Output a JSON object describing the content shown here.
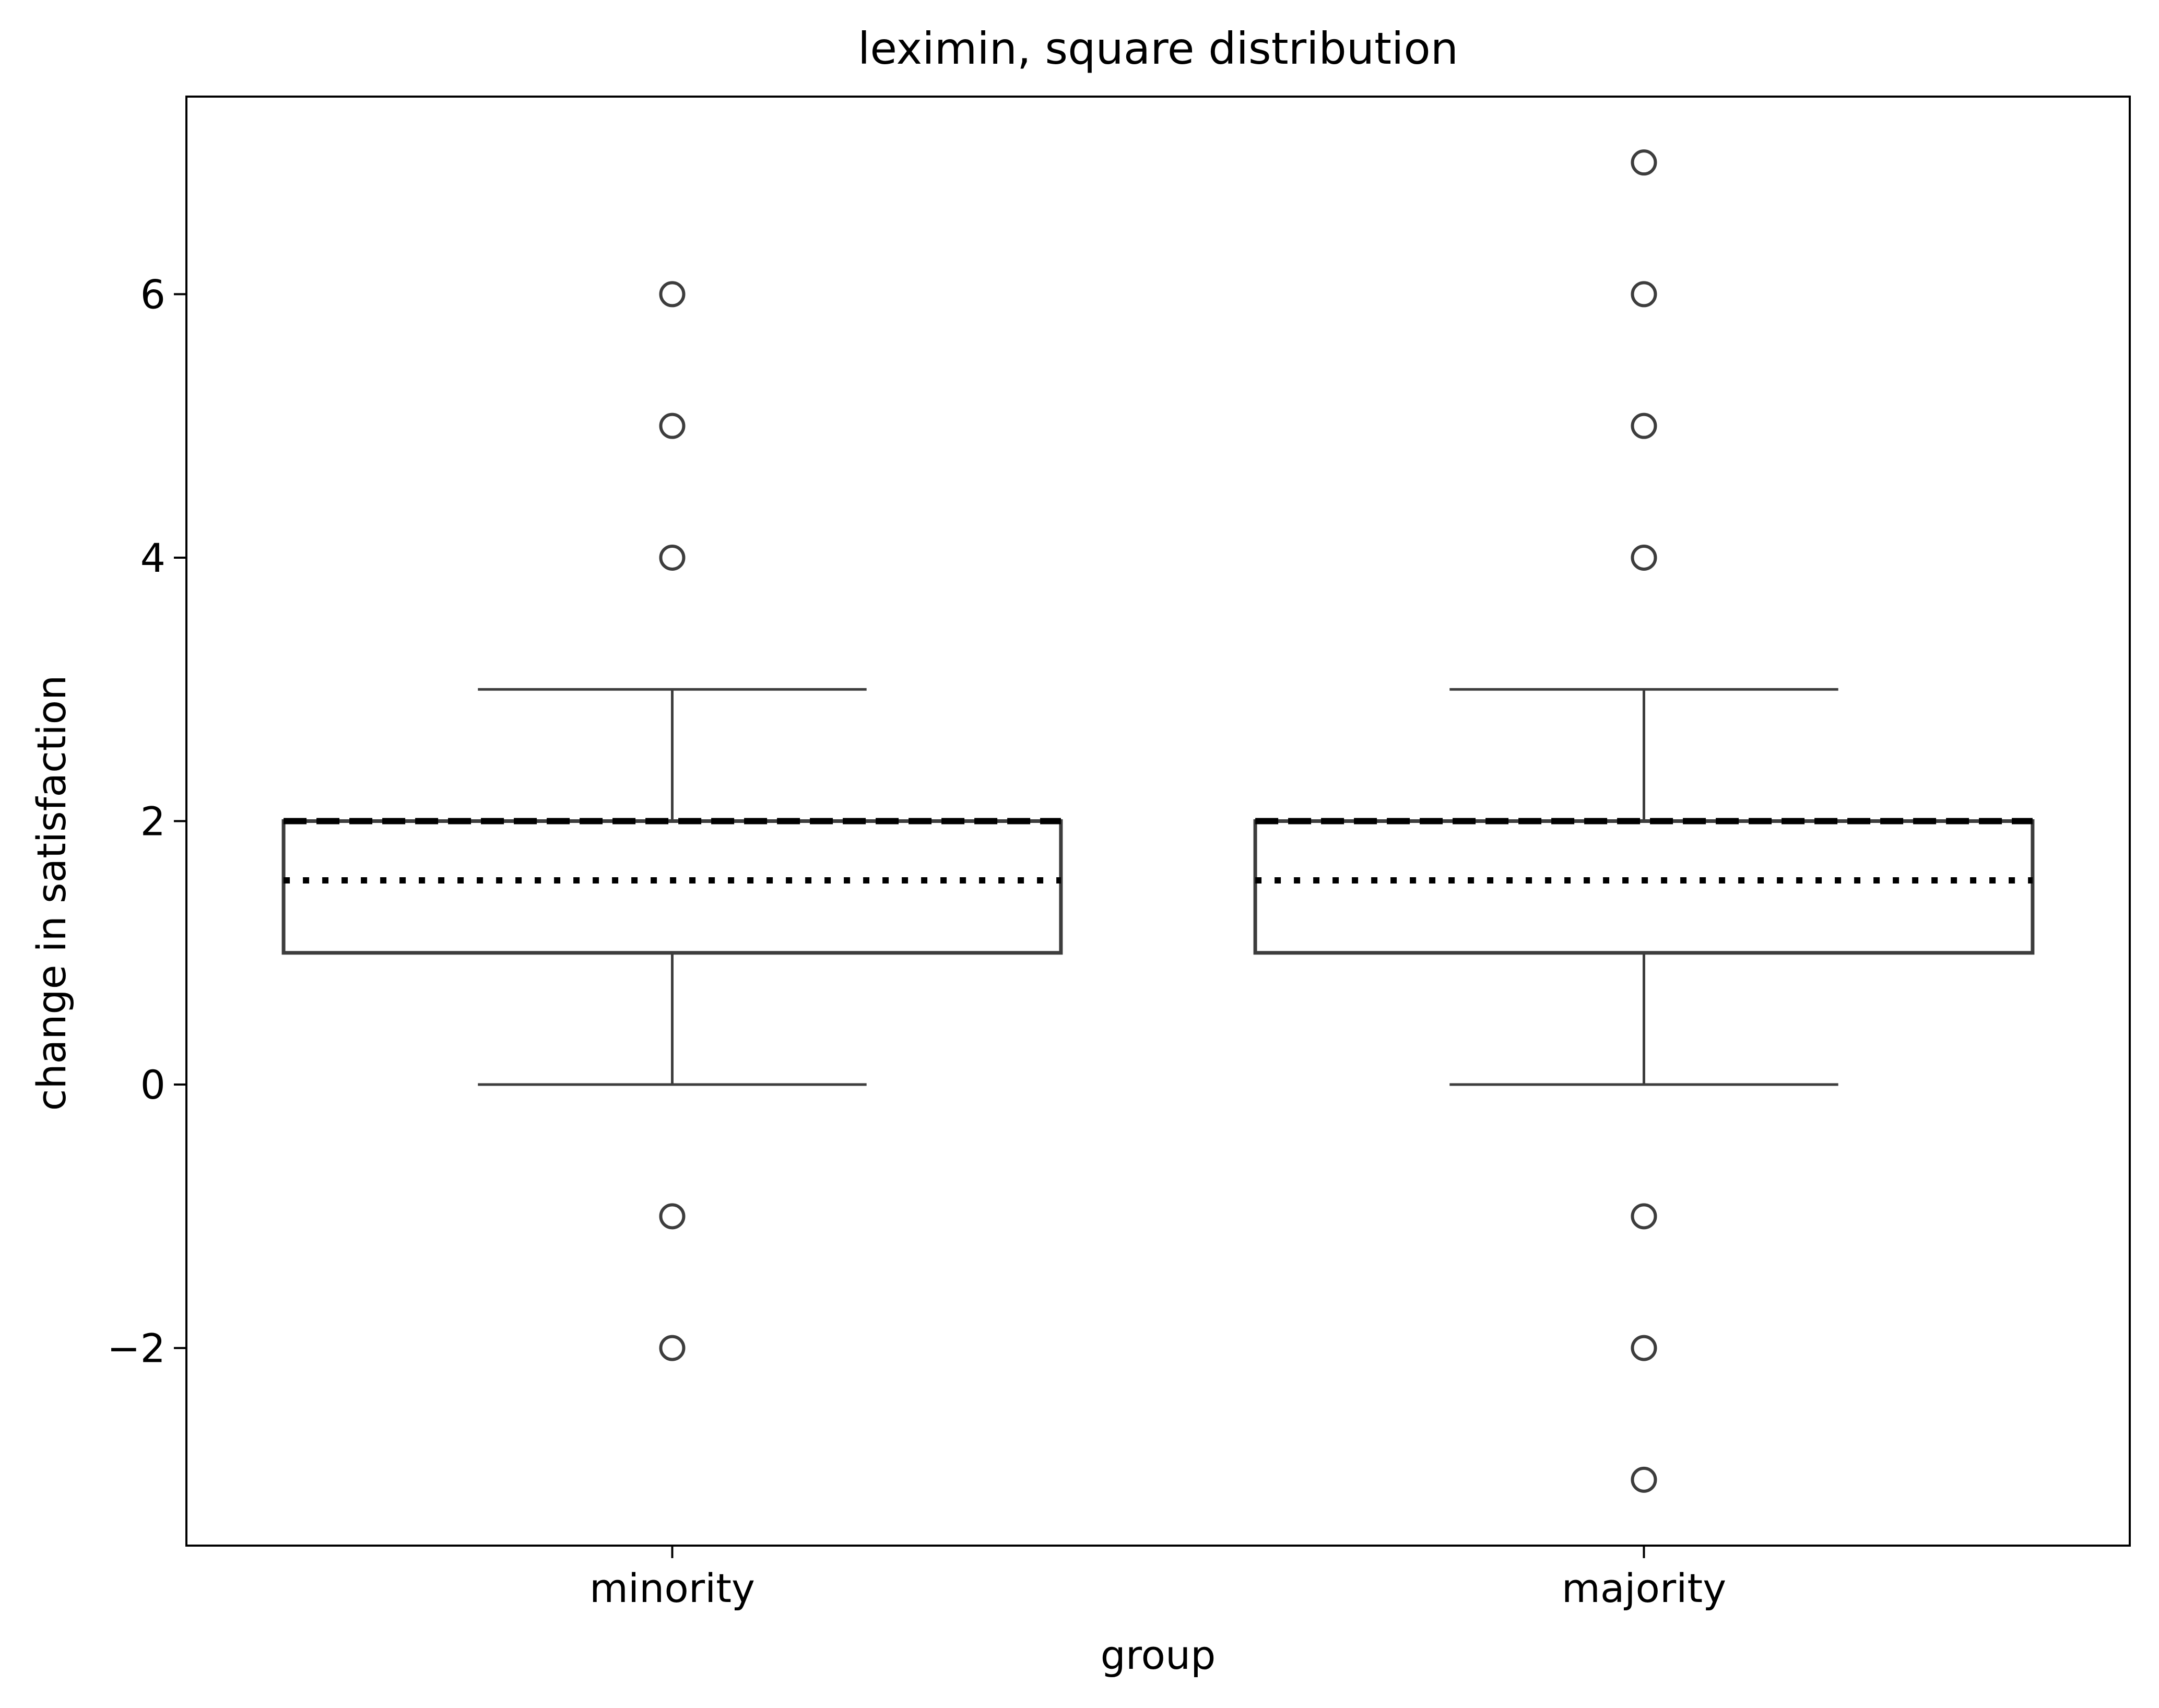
{
  "chart_data": {
    "type": "box",
    "title": "leximin, square distribution",
    "xlabel": "group",
    "ylabel": "change in satisfaction",
    "categories": [
      "minority",
      "majority"
    ],
    "ylim": [
      -3.5,
      7.5
    ],
    "yticks": [
      -2,
      0,
      2,
      4,
      6
    ],
    "ytick_labels": [
      "−2",
      "0",
      "2",
      "4",
      "6"
    ],
    "grid": false,
    "boxes": [
      {
        "group": "minority",
        "q1": 1,
        "median": 2,
        "q3": 2,
        "mean": 1.55,
        "whisker_low": 0,
        "whisker_high": 3,
        "outliers": [
          -2,
          -1,
          4,
          5,
          6
        ]
      },
      {
        "group": "majority",
        "q1": 1,
        "median": 2,
        "q3": 2,
        "mean": 1.55,
        "whisker_low": 0,
        "whisker_high": 3,
        "outliers": [
          -3,
          -2,
          -1,
          4,
          5,
          6,
          7
        ]
      }
    ],
    "median_style": "dashed",
    "mean_style": "dotted",
    "colors": {
      "box_edge": "#3d3d3d",
      "median": "#000000",
      "mean": "#000000",
      "axis": "#000000"
    }
  }
}
